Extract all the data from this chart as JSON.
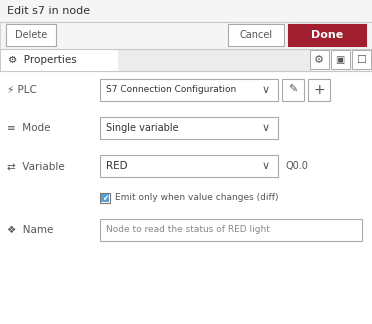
{
  "title": "Edit s7 in node",
  "bg_color": "#ececec",
  "panel_bg": "#f5f5f5",
  "white": "#ffffff",
  "dark_red": "#a01e2e",
  "border_color": "#c8c8c8",
  "border_dark": "#aaaaaa",
  "text_dark": "#333333",
  "text_mid": "#555555",
  "text_light": "#888888",
  "btn_delete_label": "Delete",
  "btn_cancel_label": "Cancel",
  "btn_done_label": "Done",
  "tab_label": "⚙  Properties",
  "plc_label": "⚡ PLC",
  "plc_value": "S7 Connection Configuration",
  "mode_label": "Mode",
  "mode_value": "Single variable",
  "variable_label": "Variable",
  "variable_value": "RED",
  "variable_extra": "Q0.0",
  "checkbox_label": "Emit only when value changes (diff)",
  "name_label": "Name",
  "name_value": "Node to read the status of RED light",
  "figw": 3.72,
  "figh": 3.24,
  "dpi": 100
}
